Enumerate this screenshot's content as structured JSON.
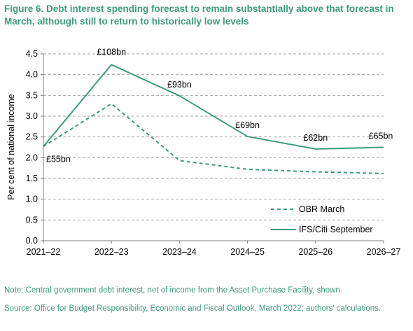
{
  "figure": {
    "title": "Figure 6. Debt interest spending forecast to remain substantially above that forecast in March, although still to return to historically low levels",
    "note": "Note: Central government debt interest, net of income from the Asset Purchase Facility, shown.",
    "source": "Source: Office for Budget Responsibility, Economic and Fiscal Outlook, March 2022; authors' calculations."
  },
  "colors": {
    "line": "#3d9b7e",
    "grid": "#a6a6a6",
    "axis": "#7f7f7f",
    "text": "#000000"
  },
  "chart_data": {
    "type": "line",
    "title": "",
    "xlabel": "",
    "ylabel": "Per cent of national income",
    "categories": [
      "2021–22",
      "2022–23",
      "2023–24",
      "2024–25",
      "2025–26",
      "2026–27"
    ],
    "ylim": [
      0,
      4.5
    ],
    "yticks": [
      "0.0",
      "0.5",
      "1.0",
      "1.5",
      "2.0",
      "2.5",
      "3.0",
      "3.5",
      "4.0",
      "4.5"
    ],
    "grid": "horizontal dashed",
    "legend_position": "bottom-right",
    "series": [
      {
        "name": "OBR March",
        "style": "dashed",
        "values": [
          2.27,
          3.3,
          1.93,
          1.72,
          1.66,
          1.62
        ]
      },
      {
        "name": "IFS/Citi September",
        "style": "solid",
        "values": [
          2.27,
          4.24,
          3.49,
          2.51,
          2.21,
          2.25
        ]
      }
    ],
    "annotations": [
      {
        "x": "2021–22",
        "text": "£55bn"
      },
      {
        "x": "2022–23",
        "text": "£108bn"
      },
      {
        "x": "2023–24",
        "text": "£93bn"
      },
      {
        "x": "2024–25",
        "text": "£69bn"
      },
      {
        "x": "2025–26",
        "text": "£62bn"
      },
      {
        "x": "2026–27",
        "text": "£65bn"
      }
    ]
  }
}
